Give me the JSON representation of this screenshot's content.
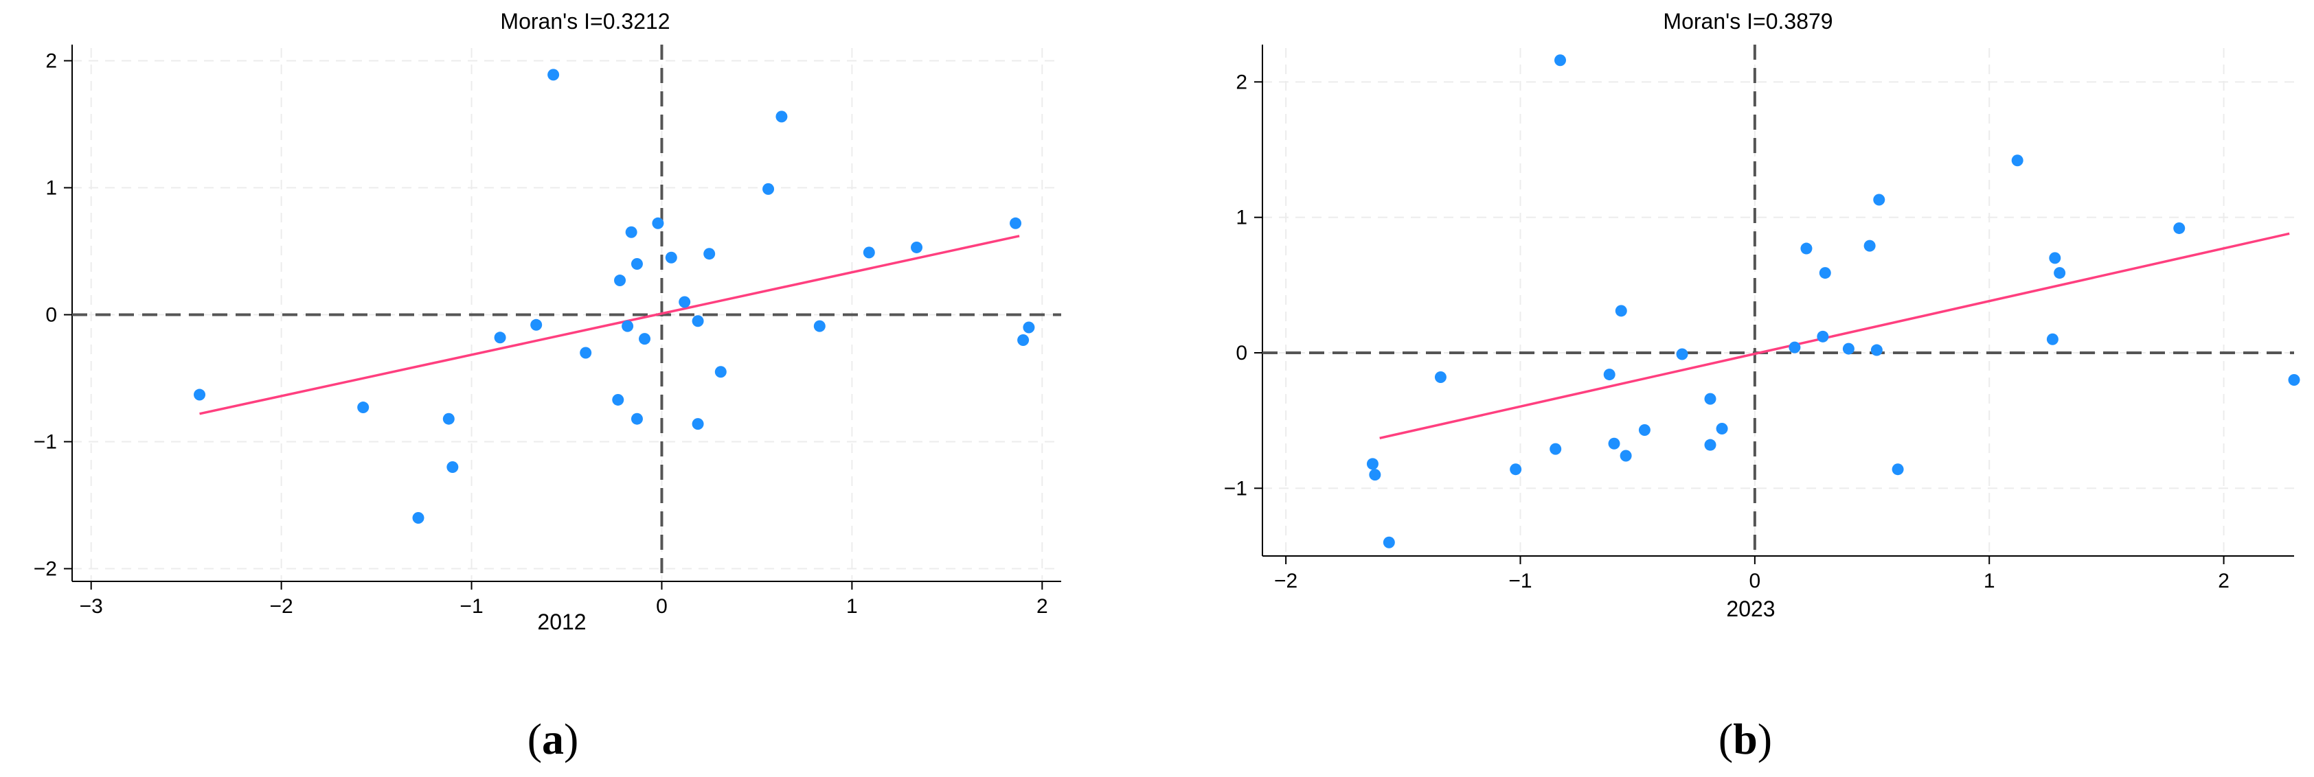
{
  "chart_data": [
    {
      "type": "scatter",
      "title": "Moran's I=0.3212",
      "xlabel": "2012",
      "ylabel": "",
      "xlim": [
        -3.1,
        2.1
      ],
      "ylim": [
        -2.1,
        2.1
      ],
      "x_ticks": [
        -3,
        -2,
        -1,
        0,
        1,
        2
      ],
      "y_ticks": [
        -2,
        -1,
        0,
        1,
        2
      ],
      "x_tick_labels": [
        "−3",
        "−2",
        "−1",
        "0",
        "1",
        "2"
      ],
      "y_tick_labels": [
        "−2",
        "−1",
        "0",
        "1",
        "2"
      ],
      "grid": true,
      "panel_label": {
        "open": "(",
        "letter": "a",
        "close": ")"
      },
      "point_color": "#1e90ff",
      "fit_color": "#ff3f7f",
      "fit_line": {
        "x": [
          -2.43,
          1.88
        ],
        "y": [
          -0.78,
          0.62
        ]
      },
      "points": [
        {
          "x": -2.43,
          "y": -0.63
        },
        {
          "x": -1.57,
          "y": -0.73
        },
        {
          "x": -1.28,
          "y": -1.6
        },
        {
          "x": -1.12,
          "y": -0.82
        },
        {
          "x": -1.1,
          "y": -1.2
        },
        {
          "x": -0.85,
          "y": -0.18
        },
        {
          "x": -0.66,
          "y": -0.08
        },
        {
          "x": -0.57,
          "y": 1.89
        },
        {
          "x": -0.4,
          "y": -0.3
        },
        {
          "x": -0.23,
          "y": -0.67
        },
        {
          "x": -0.22,
          "y": 0.27
        },
        {
          "x": -0.18,
          "y": -0.09
        },
        {
          "x": -0.16,
          "y": 0.65
        },
        {
          "x": -0.13,
          "y": 0.4
        },
        {
          "x": -0.13,
          "y": -0.82
        },
        {
          "x": -0.09,
          "y": -0.19
        },
        {
          "x": -0.02,
          "y": 0.72
        },
        {
          "x": 0.05,
          "y": 0.45
        },
        {
          "x": 0.12,
          "y": 0.1
        },
        {
          "x": 0.19,
          "y": -0.05
        },
        {
          "x": 0.19,
          "y": -0.86
        },
        {
          "x": 0.25,
          "y": 0.48
        },
        {
          "x": 0.31,
          "y": -0.45
        },
        {
          "x": 0.56,
          "y": 0.99
        },
        {
          "x": 0.63,
          "y": 1.56
        },
        {
          "x": 0.83,
          "y": -0.09
        },
        {
          "x": 1.09,
          "y": 0.49
        },
        {
          "x": 1.34,
          "y": 0.53
        },
        {
          "x": 1.86,
          "y": 0.72
        },
        {
          "x": 1.9,
          "y": -0.2
        },
        {
          "x": 1.93,
          "y": -0.1
        }
      ]
    },
    {
      "type": "scatter",
      "title": "Moran's I=0.3879",
      "xlabel": "2023",
      "ylabel": "",
      "xlim": [
        -2.1,
        2.3
      ],
      "ylim": [
        -1.5,
        2.25
      ],
      "x_ticks": [
        -2,
        -1,
        0,
        1,
        2
      ],
      "y_ticks": [
        -1,
        0,
        1,
        2
      ],
      "x_tick_labels": [
        "−2",
        "−1",
        "0",
        "1",
        "2"
      ],
      "y_tick_labels": [
        "−1",
        "0",
        "1",
        "2"
      ],
      "grid": true,
      "panel_label": {
        "open": "(",
        "letter": "b",
        "close": ")"
      },
      "point_color": "#1e90ff",
      "fit_color": "#ff3f7f",
      "fit_line": {
        "x": [
          -1.6,
          2.28
        ],
        "y": [
          -0.63,
          0.88
        ]
      },
      "points": [
        {
          "x": -1.63,
          "y": -0.82
        },
        {
          "x": -1.62,
          "y": -0.9
        },
        {
          "x": -1.56,
          "y": -1.4
        },
        {
          "x": -1.34,
          "y": -0.18
        },
        {
          "x": -1.02,
          "y": -0.86
        },
        {
          "x": -0.85,
          "y": -0.71
        },
        {
          "x": -0.83,
          "y": 2.16
        },
        {
          "x": -0.62,
          "y": -0.16
        },
        {
          "x": -0.6,
          "y": -0.67
        },
        {
          "x": -0.57,
          "y": 0.31
        },
        {
          "x": -0.55,
          "y": -0.76
        },
        {
          "x": -0.47,
          "y": -0.57
        },
        {
          "x": -0.31,
          "y": -0.01
        },
        {
          "x": -0.19,
          "y": -0.34
        },
        {
          "x": -0.19,
          "y": -0.68
        },
        {
          "x": -0.14,
          "y": -0.56
        },
        {
          "x": 0.17,
          "y": 0.04
        },
        {
          "x": 0.22,
          "y": 0.77
        },
        {
          "x": 0.29,
          "y": 0.12
        },
        {
          "x": 0.3,
          "y": 0.59
        },
        {
          "x": 0.4,
          "y": 0.03
        },
        {
          "x": 0.49,
          "y": 0.79
        },
        {
          "x": 0.52,
          "y": 0.02
        },
        {
          "x": 0.53,
          "y": 1.13
        },
        {
          "x": 0.61,
          "y": -0.86
        },
        {
          "x": 1.12,
          "y": 1.42
        },
        {
          "x": 1.27,
          "y": 0.1
        },
        {
          "x": 1.28,
          "y": 0.7
        },
        {
          "x": 1.3,
          "y": 0.59
        },
        {
          "x": 1.81,
          "y": 0.92
        },
        {
          "x": 2.3,
          "y": -0.2
        }
      ]
    }
  ]
}
